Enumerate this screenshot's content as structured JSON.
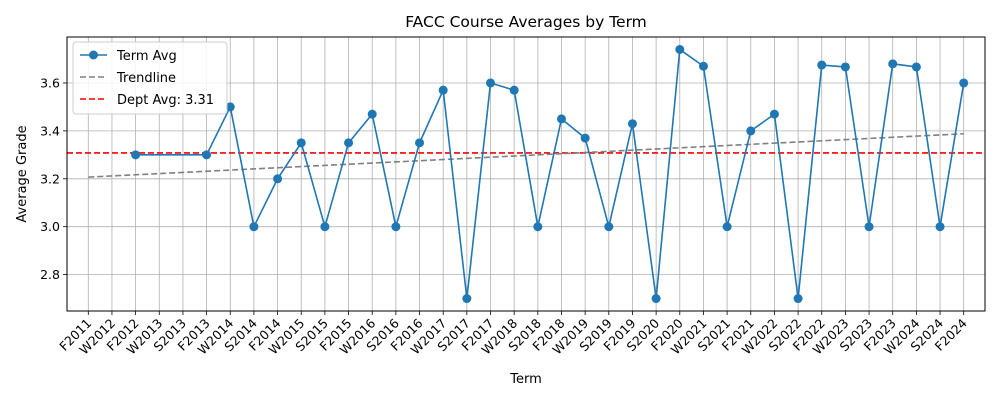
{
  "chart_data": {
    "type": "line",
    "title": "FACC Course Averages by Term",
    "xlabel": "Term",
    "ylabel": "Average Grade",
    "categories": [
      "F2011",
      "W2012",
      "F2012",
      "W2013",
      "S2013",
      "F2013",
      "W2014",
      "S2014",
      "F2014",
      "W2015",
      "S2015",
      "F2015",
      "W2016",
      "S2016",
      "F2016",
      "W2017",
      "S2017",
      "F2017",
      "W2018",
      "S2018",
      "F2018",
      "W2019",
      "S2019",
      "F2019",
      "S2020",
      "F2020",
      "W2021",
      "S2021",
      "F2021",
      "W2022",
      "S2022",
      "F2022",
      "W2023",
      "S2023",
      "F2023",
      "W2024",
      "S2024",
      "F2024"
    ],
    "series": [
      {
        "name": "Term Avg",
        "color": "#1f77b4",
        "values": [
          null,
          null,
          3.3,
          null,
          null,
          3.3,
          3.5,
          3.0,
          3.2,
          3.35,
          3.0,
          3.35,
          3.47,
          3.0,
          3.35,
          3.57,
          2.7,
          3.6,
          3.57,
          3.0,
          3.45,
          3.37,
          3.0,
          3.43,
          2.7,
          3.74,
          3.67,
          3.0,
          3.4,
          3.47,
          2.7,
          3.675,
          3.667,
          3.0,
          3.68,
          3.667,
          3.0,
          3.6
        ]
      }
    ],
    "trendline": {
      "name": "Trendline",
      "color": "#808080",
      "start": 3.207,
      "end": 3.388
    },
    "reference_line": {
      "name": "Dept Avg: 3.31",
      "value": 3.308,
      "color": "#ff0000"
    },
    "yticks": [
      2.8,
      3.0,
      3.2,
      3.4,
      3.6
    ],
    "ylim": [
      2.648,
      3.792
    ],
    "grid": true,
    "legend_position": "top-left"
  }
}
